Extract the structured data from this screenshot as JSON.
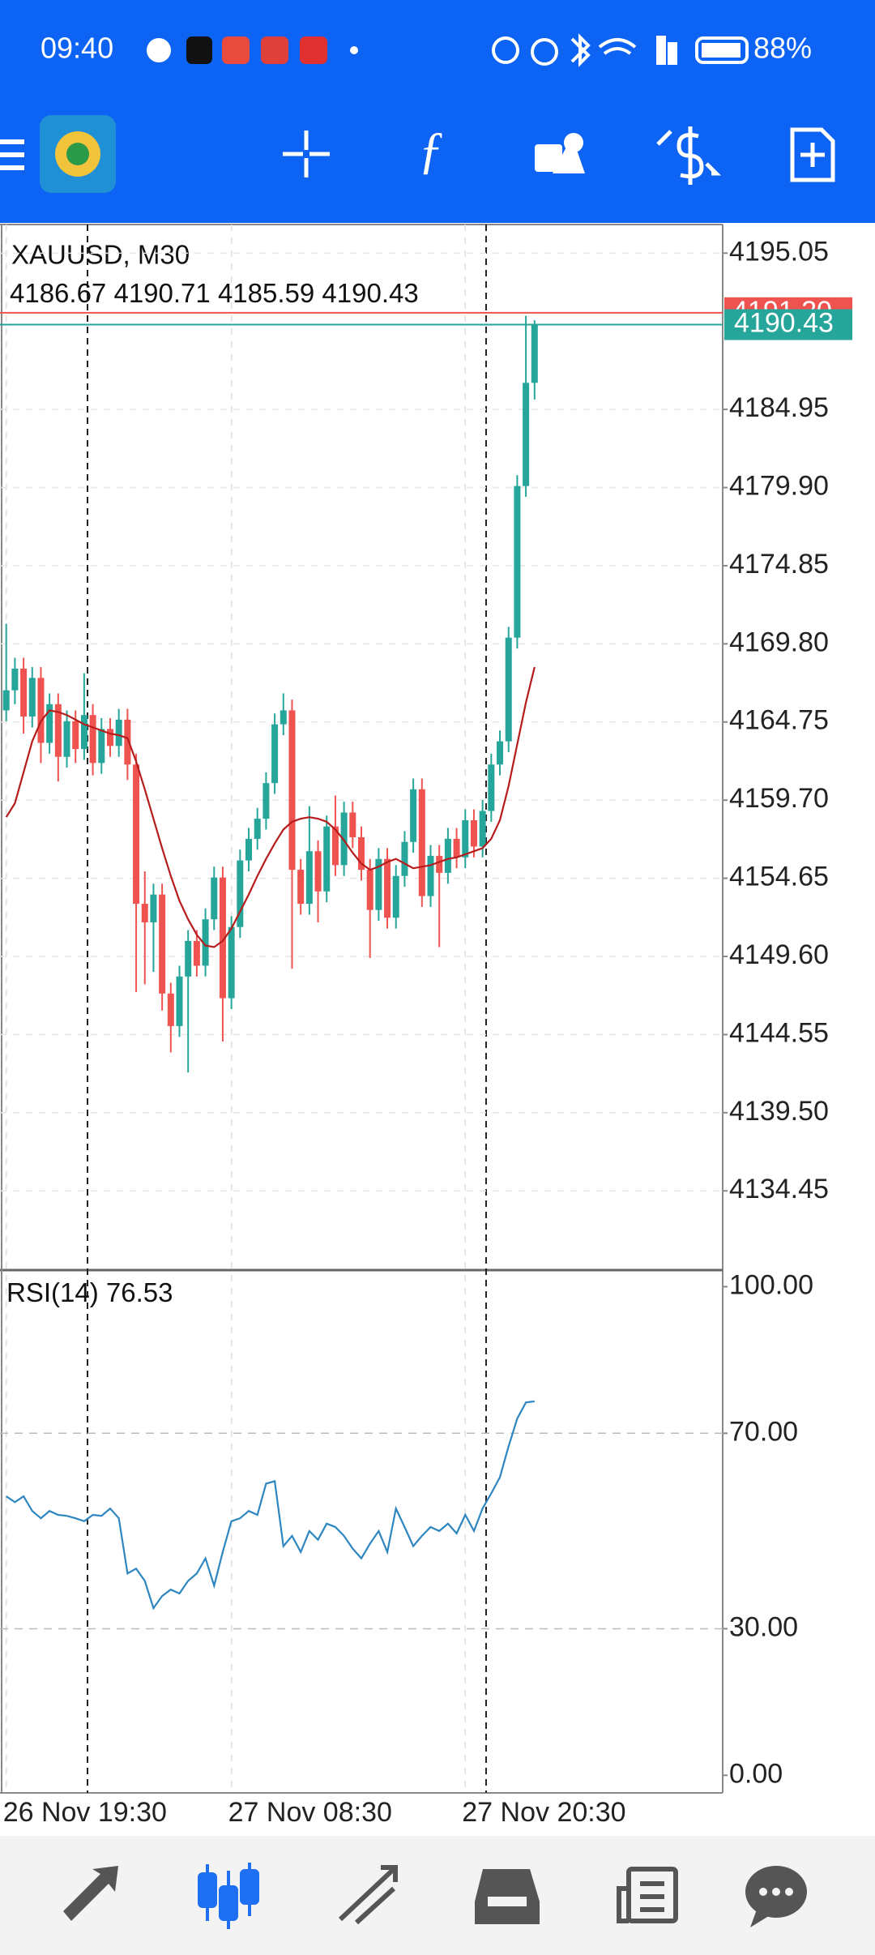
{
  "status_bar": {
    "time": "09:40",
    "battery": "88%"
  },
  "chart_data": {
    "type": "candlestick",
    "symbol": "XAUUSD, M30",
    "up_color": "#26a69a",
    "down_color": "#ef5350",
    "ask": {
      "value": 4191.2,
      "label": "4191.20",
      "color": "#ef5350"
    },
    "ohlc": [
      [
        4165.5,
        4171.1,
        4164.8,
        4166.8
      ],
      [
        4166.8,
        4168.9,
        4165.9,
        4168.2
      ],
      [
        4168.2,
        4168.9,
        4164.0,
        4165.1
      ],
      [
        4165.1,
        4168.3,
        4164.4,
        4167.6
      ],
      [
        4167.6,
        4168.3,
        4162.1,
        4163.4
      ],
      [
        4163.4,
        4166.6,
        4162.7,
        4165.9
      ],
      [
        4165.9,
        4166.6,
        4160.9,
        4162.5
      ],
      [
        4162.5,
        4165.5,
        4161.8,
        4164.8
      ],
      [
        4164.8,
        4165.5,
        4162.1,
        4163.0
      ],
      [
        4163.0,
        4167.9,
        4162.3,
        4165.2
      ],
      [
        4165.2,
        4165.9,
        4161.3,
        4162.1
      ],
      [
        4162.1,
        4165.0,
        4161.4,
        4164.3
      ],
      [
        4164.3,
        4165.0,
        4162.5,
        4163.2
      ],
      [
        4163.2,
        4165.6,
        4162.5,
        4164.9
      ],
      [
        4164.9,
        4165.6,
        4161.0,
        4162.0
      ],
      [
        4162.0,
        4162.7,
        4147.3,
        4153.0
      ],
      [
        4153.0,
        4155.1,
        4147.8,
        4151.8
      ],
      [
        4151.8,
        4154.3,
        4148.6,
        4153.6
      ],
      [
        4153.6,
        4154.3,
        4146.1,
        4147.2
      ],
      [
        4147.2,
        4147.9,
        4143.4,
        4145.1
      ],
      [
        4145.1,
        4149.0,
        4144.4,
        4148.3
      ],
      [
        4148.3,
        4151.3,
        4142.1,
        4150.6
      ],
      [
        4150.6,
        4151.3,
        4148.3,
        4149.0
      ],
      [
        4149.0,
        4152.7,
        4148.3,
        4152.0
      ],
      [
        4152.0,
        4155.4,
        4151.3,
        4154.7
      ],
      [
        4154.7,
        4155.4,
        4144.1,
        4146.9
      ],
      [
        4146.9,
        4152.2,
        4146.2,
        4151.5
      ],
      [
        4151.5,
        4156.5,
        4150.8,
        4155.8
      ],
      [
        4155.8,
        4157.9,
        4155.1,
        4157.2
      ],
      [
        4157.2,
        4159.2,
        4156.5,
        4158.5
      ],
      [
        4158.5,
        4161.5,
        4157.8,
        4160.8
      ],
      [
        4160.8,
        4165.3,
        4160.1,
        4164.6
      ],
      [
        4164.6,
        4166.6,
        4163.9,
        4165.5
      ],
      [
        4165.5,
        4166.2,
        4148.8,
        4155.2
      ],
      [
        4155.2,
        4155.9,
        4152.3,
        4153.0
      ],
      [
        4153.0,
        4159.3,
        4152.3,
        4156.4
      ],
      [
        4156.4,
        4157.1,
        4151.8,
        4153.8
      ],
      [
        4153.8,
        4158.7,
        4153.1,
        4158.0
      ],
      [
        4158.0,
        4160.0,
        4154.8,
        4155.5
      ],
      [
        4155.5,
        4159.6,
        4154.8,
        4158.9
      ],
      [
        4158.9,
        4159.6,
        4156.6,
        4157.3
      ],
      [
        4157.3,
        4158.0,
        4154.5,
        4155.2
      ],
      [
        4155.2,
        4155.9,
        4149.5,
        4152.6
      ],
      [
        4152.6,
        4156.6,
        4151.9,
        4155.9
      ],
      [
        4155.9,
        4156.6,
        4151.4,
        4152.1
      ],
      [
        4152.1,
        4155.5,
        4151.4,
        4154.8
      ],
      [
        4154.8,
        4157.7,
        4154.1,
        4157.0
      ],
      [
        4157.0,
        4161.1,
        4156.3,
        4160.4
      ],
      [
        4160.4,
        4161.1,
        4152.8,
        4153.5
      ],
      [
        4153.5,
        4156.8,
        4152.8,
        4156.1
      ],
      [
        4156.1,
        4156.8,
        4150.2,
        4155.0
      ],
      [
        4155.0,
        4157.9,
        4154.3,
        4157.2
      ],
      [
        4157.2,
        4157.9,
        4155.3,
        4156.0
      ],
      [
        4156.0,
        4159.1,
        4155.3,
        4158.4
      ],
      [
        4158.4,
        4159.1,
        4156.0,
        4156.7
      ],
      [
        4156.7,
        4159.7,
        4156.0,
        4159.0
      ],
      [
        4159.0,
        4162.7,
        4158.3,
        4162.0
      ],
      [
        4162.0,
        4164.2,
        4161.3,
        4163.5
      ],
      [
        4163.5,
        4170.9,
        4162.8,
        4170.2
      ],
      [
        4170.2,
        4180.7,
        4169.5,
        4180.0
      ],
      [
        4180.0,
        4191.0,
        4179.3,
        4186.67
      ],
      [
        4186.67,
        4190.71,
        4185.59,
        4190.43
      ]
    ],
    "ma": {
      "color": "#b71c1c",
      "values": [
        4158.6,
        4159.5,
        4161.5,
        4163.5,
        4164.8,
        4165.5,
        4165.4,
        4165.2,
        4164.9,
        4164.6,
        4164.4,
        4164.2,
        4164.0,
        4163.9,
        4163.7,
        4162.2,
        4160.4,
        4158.5,
        4156.6,
        4154.8,
        4153.2,
        4152.0,
        4151.0,
        4150.3,
        4150.2,
        4150.6,
        4151.4,
        4152.5,
        4153.6,
        4154.8,
        4155.9,
        4156.9,
        4157.8,
        4158.3,
        4158.5,
        4158.6,
        4158.5,
        4158.3,
        4157.8,
        4157.1,
        4156.3,
        4155.6,
        4155.2,
        4155.4,
        4155.7,
        4155.9,
        4155.6,
        4155.3,
        4155.4,
        4155.5,
        4155.7,
        4155.9,
        4156.0,
        4156.2,
        4156.4,
        4156.6,
        4157.2,
        4158.4,
        4160.6,
        4163.3,
        4166.0,
        4168.3
      ]
    },
    "categories": [
      "26 Nov 19:30",
      null,
      null,
      null,
      null,
      null,
      null,
      null,
      null,
      null,
      null,
      null,
      null,
      null,
      null,
      null,
      null,
      null,
      null,
      null,
      null,
      null,
      null,
      null,
      null,
      null,
      "27 Nov 08:30",
      null,
      null,
      null,
      null,
      null,
      null,
      null,
      null,
      null,
      null,
      null,
      null,
      null,
      null,
      null,
      null,
      null,
      null,
      null,
      null,
      null,
      null,
      null,
      null,
      null,
      null,
      "27 Nov 20:30",
      null,
      null,
      null,
      null,
      null,
      null,
      null,
      null
    ],
    "ylim": [
      4129.38,
      4196.9
    ],
    "yticks": [
      {
        "value": 4195.05,
        "label": "4195.05"
      },
      {
        "value": 4184.95,
        "label": "4184.95"
      },
      {
        "value": 4179.9,
        "label": "4179.90"
      },
      {
        "value": 4174.85,
        "label": "4174.85"
      },
      {
        "value": 4169.8,
        "label": "4169.80"
      },
      {
        "value": 4164.75,
        "label": "4164.75"
      },
      {
        "value": 4159.7,
        "label": "4159.70"
      },
      {
        "value": 4154.65,
        "label": "4154.65"
      },
      {
        "value": 4149.6,
        "label": "4149.60"
      },
      {
        "value": 4144.55,
        "label": "4144.55"
      },
      {
        "value": 4139.5,
        "label": "4139.50"
      },
      {
        "value": 4134.45,
        "label": "4134.45"
      }
    ],
    "indicator": {
      "type": "line",
      "title": "RSI(14)",
      "value": 76.53,
      "color": "#2e86c1",
      "values": [
        57.1,
        55.9,
        57.1,
        54.1,
        52.6,
        54.1,
        53.3,
        53.1,
        52.6,
        52.0,
        53.3,
        53.1,
        54.6,
        52.6,
        41.3,
        42.3,
        39.8,
        34.2,
        36.7,
        38.0,
        37.2,
        39.8,
        41.3,
        44.4,
        38.8,
        45.7,
        52.0,
        52.6,
        54.1,
        53.3,
        59.7,
        60.2,
        46.9,
        49.0,
        45.7,
        50.0,
        48.2,
        51.5,
        50.8,
        49.0,
        46.4,
        44.4,
        47.4,
        50.0,
        45.7,
        54.6,
        50.8,
        46.9,
        49.0,
        50.8,
        50.0,
        51.5,
        49.5,
        53.3,
        50.0,
        54.6,
        57.7,
        61.0,
        67.3,
        73.0,
        76.3,
        76.53
      ],
      "ylim": [
        -3.6,
        103.06
      ],
      "yticks": [
        {
          "value": 100,
          "label": "100.00"
        },
        {
          "value": 70,
          "label": "70.00"
        },
        {
          "value": 30,
          "label": "30.00"
        },
        {
          "value": 0,
          "label": "0.00"
        }
      ]
    }
  }
}
